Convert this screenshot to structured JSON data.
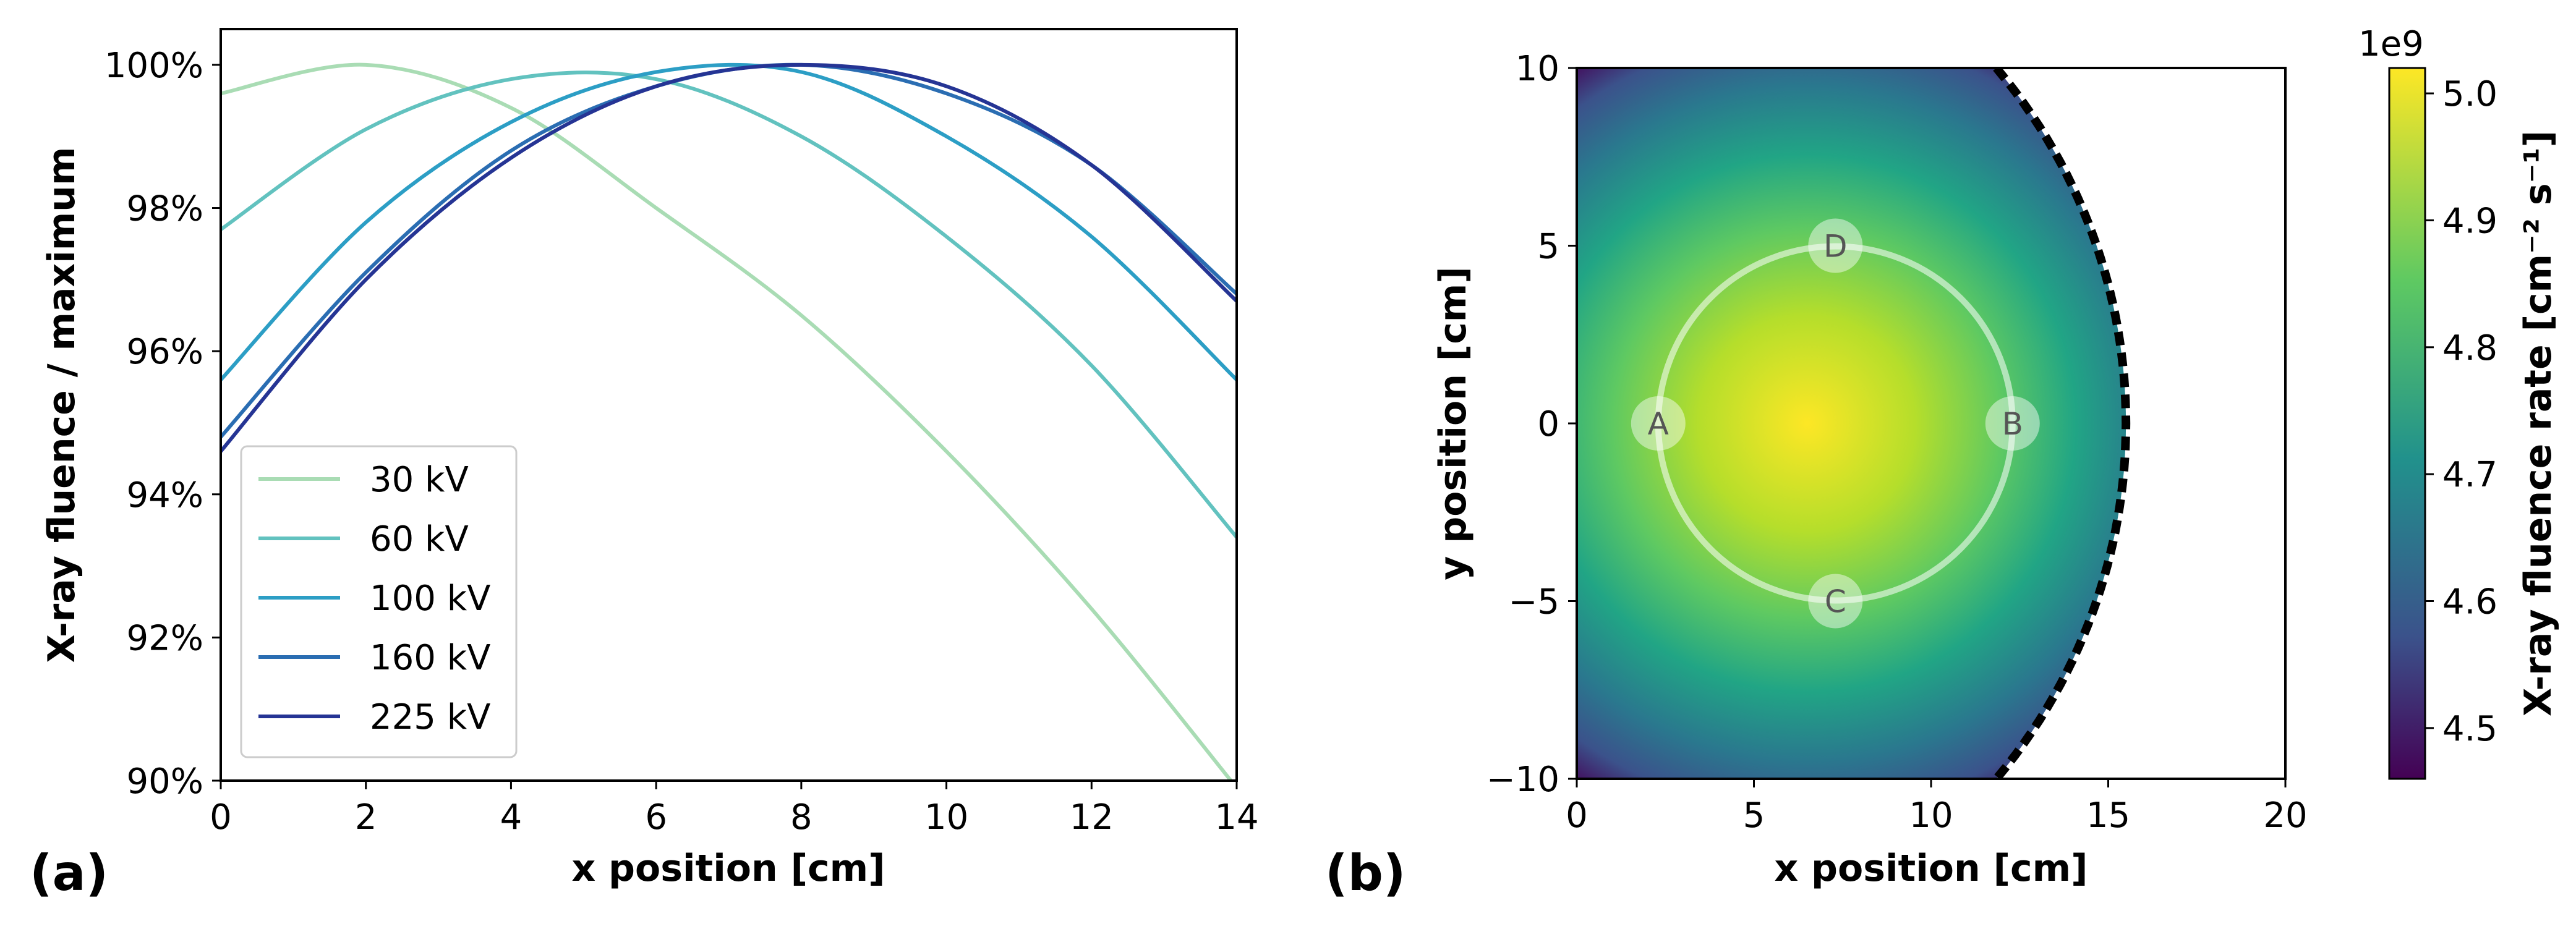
{
  "chart_data": [
    {
      "panel": "(a)",
      "type": "line",
      "xlabel": "x position [cm]",
      "ylabel": "X-ray fluence / maximum",
      "xlim": [
        0,
        14
      ],
      "ylim": [
        90,
        100.5
      ],
      "xticks": [
        "0",
        "2",
        "4",
        "6",
        "8",
        "10",
        "12",
        "14"
      ],
      "yticks": [
        "90%",
        "92%",
        "94%",
        "96%",
        "98%",
        "100%"
      ],
      "legend_position": "lower-left",
      "series": [
        {
          "name": "30 kV",
          "color": "#a9dcb4",
          "peak_x": 2.1,
          "x": [
            0,
            2,
            4,
            6,
            8,
            10,
            12,
            14
          ],
          "y": [
            99.6,
            100.0,
            99.4,
            98.0,
            96.5,
            94.6,
            92.4,
            89.9
          ]
        },
        {
          "name": "60 kV",
          "color": "#62c2bf",
          "peak_x": 4.9,
          "x": [
            0,
            2,
            4,
            6,
            8,
            10,
            12,
            14
          ],
          "y": [
            97.7,
            99.1,
            99.8,
            99.8,
            99.0,
            97.6,
            95.8,
            93.4
          ]
        },
        {
          "name": "100 kV",
          "color": "#2c9ec5",
          "peak_x": 6.8,
          "x": [
            0,
            2,
            4,
            6,
            8,
            10,
            12,
            14
          ],
          "y": [
            95.6,
            97.8,
            99.2,
            99.9,
            99.9,
            99.0,
            97.6,
            95.6
          ]
        },
        {
          "name": "160 kV",
          "color": "#2a6db2",
          "peak_x": 7.6,
          "x": [
            0,
            2,
            4,
            6,
            8,
            10,
            12,
            14
          ],
          "y": [
            94.8,
            97.1,
            98.8,
            99.7,
            100.0,
            99.6,
            98.6,
            96.8
          ]
        },
        {
          "name": "225 kV",
          "color": "#253494",
          "peak_x": 7.7,
          "x": [
            0,
            2,
            4,
            6,
            8,
            10,
            12,
            14
          ],
          "y": [
            94.6,
            97.0,
            98.7,
            99.7,
            100.0,
            99.7,
            98.6,
            96.7
          ]
        }
      ]
    },
    {
      "panel": "(b)",
      "type": "heatmap",
      "xlabel": "x position [cm]",
      "ylabel": "y position [cm]",
      "xlim": [
        0,
        20
      ],
      "ylim": [
        -10,
        10
      ],
      "xticks": [
        "0",
        "5",
        "10",
        "15",
        "20"
      ],
      "yticks": [
        "−10",
        "−5",
        "0",
        "5",
        "10"
      ],
      "field": {
        "center": [
          6.5,
          0
        ],
        "max": 5.02,
        "min": 4.46,
        "boundary_radius": 15.5
      },
      "circle": {
        "center": [
          7.3,
          0
        ],
        "radius": 5
      },
      "points": [
        {
          "label": "A",
          "x": 2.3,
          "y": 0
        },
        {
          "label": "B",
          "x": 12.3,
          "y": 0
        },
        {
          "label": "C",
          "x": 7.3,
          "y": -5
        },
        {
          "label": "D",
          "x": 7.3,
          "y": 5
        }
      ],
      "colorbar": {
        "label": "X-ray fluence rate [cm⁻² s⁻¹]",
        "multiplier": "1e9",
        "range": [
          4.46,
          5.02
        ],
        "ticks": [
          "4.5",
          "4.6",
          "4.7",
          "4.8",
          "4.9",
          "5.0"
        ],
        "colors": [
          "#440154",
          "#3b528b",
          "#21918c",
          "#5ec962",
          "#fde725"
        ]
      }
    }
  ]
}
